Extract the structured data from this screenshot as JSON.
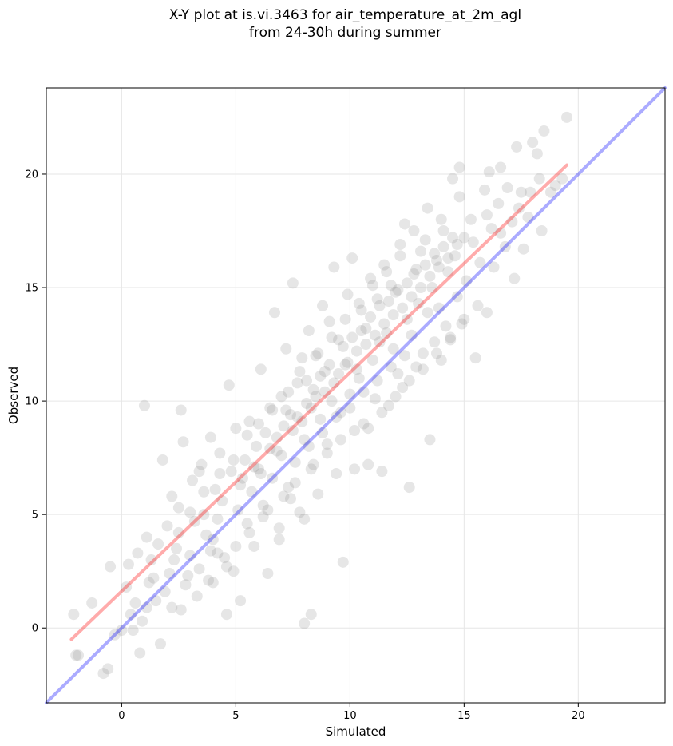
{
  "chart_data": {
    "type": "scatter",
    "title_line1": "X-Y plot at is.vi.3463 for air_temperature_at_2m_agl",
    "title_line2": "from 24-30h during summer",
    "xlabel": "Simulated",
    "ylabel": "Observed",
    "xlim": [
      -3.3,
      23.8
    ],
    "ylim": [
      -3.3,
      23.8
    ],
    "x_ticks": [
      0,
      5,
      10,
      15,
      20
    ],
    "y_ticks": [
      0,
      5,
      10,
      15,
      20
    ],
    "grid": true,
    "point_color": "#808080",
    "point_opacity": 0.2,
    "reference_line": {
      "name": "1:1 line",
      "color": "#0000ff",
      "x": [
        -3.3,
        23.8
      ],
      "y": [
        -3.3,
        23.8
      ]
    },
    "regression_line": {
      "name": "fit",
      "color": "#ff0000",
      "x": [
        -2.2,
        19.5
      ],
      "y": [
        -0.5,
        20.4
      ]
    },
    "points": [
      [
        -2.1,
        0.6
      ],
      [
        -2.0,
        -1.2
      ],
      [
        -1.9,
        -1.2
      ],
      [
        -1.3,
        1.1
      ],
      [
        -0.8,
        -2.0
      ],
      [
        -0.6,
        -1.8
      ],
      [
        -0.5,
        2.7
      ],
      [
        -0.3,
        -0.3
      ],
      [
        0.0,
        -0.1
      ],
      [
        0.2,
        1.8
      ],
      [
        0.3,
        2.8
      ],
      [
        0.4,
        0.6
      ],
      [
        0.5,
        -0.1
      ],
      [
        0.6,
        1.1
      ],
      [
        0.7,
        3.3
      ],
      [
        0.8,
        -1.1
      ],
      [
        1.0,
        9.8
      ],
      [
        1.1,
        0.9
      ],
      [
        1.2,
        2.0
      ],
      [
        1.3,
        3.0
      ],
      [
        1.5,
        1.2
      ],
      [
        1.6,
        3.7
      ],
      [
        1.7,
        -0.7
      ],
      [
        1.8,
        7.4
      ],
      [
        2.0,
        4.5
      ],
      [
        2.1,
        2.4
      ],
      [
        2.2,
        0.9
      ],
      [
        2.4,
        3.5
      ],
      [
        2.5,
        5.3
      ],
      [
        2.6,
        0.8
      ],
      [
        2.6,
        9.6
      ],
      [
        2.7,
        8.2
      ],
      [
        2.8,
        1.9
      ],
      [
        3.0,
        3.2
      ],
      [
        3.1,
        6.5
      ],
      [
        3.2,
        4.7
      ],
      [
        3.3,
        1.4
      ],
      [
        3.4,
        2.6
      ],
      [
        3.5,
        7.2
      ],
      [
        3.6,
        5.0
      ],
      [
        3.8,
        2.1
      ],
      [
        3.9,
        8.4
      ],
      [
        4.0,
        3.9
      ],
      [
        4.1,
        6.1
      ],
      [
        4.2,
        4.8
      ],
      [
        4.3,
        7.7
      ],
      [
        4.4,
        5.6
      ],
      [
        4.5,
        3.1
      ],
      [
        4.6,
        0.6
      ],
      [
        4.7,
        10.7
      ],
      [
        4.8,
        6.9
      ],
      [
        4.9,
        2.5
      ],
      [
        5.0,
        8.8
      ],
      [
        5.1,
        5.2
      ],
      [
        5.2,
        6.3
      ],
      [
        5.2,
        1.2
      ],
      [
        5.4,
        7.4
      ],
      [
        5.5,
        4.6
      ],
      [
        5.6,
        9.1
      ],
      [
        5.7,
        6.0
      ],
      [
        5.8,
        3.6
      ],
      [
        5.9,
        8.0
      ],
      [
        6.0,
        7.0
      ],
      [
        6.1,
        11.4
      ],
      [
        6.2,
        5.4
      ],
      [
        6.3,
        8.6
      ],
      [
        6.4,
        2.4
      ],
      [
        6.5,
        9.7
      ],
      [
        6.6,
        6.6
      ],
      [
        6.7,
        13.9
      ],
      [
        6.8,
        7.8
      ],
      [
        6.9,
        4.4
      ],
      [
        7.0,
        10.2
      ],
      [
        7.1,
        8.9
      ],
      [
        7.2,
        12.3
      ],
      [
        7.3,
        6.2
      ],
      [
        7.4,
        9.4
      ],
      [
        7.5,
        15.2
      ],
      [
        7.6,
        7.3
      ],
      [
        7.7,
        10.8
      ],
      [
        7.8,
        5.1
      ],
      [
        7.9,
        11.9
      ],
      [
        8.0,
        0.2
      ],
      [
        8.0,
        8.3
      ],
      [
        8.1,
        9.9
      ],
      [
        8.2,
        13.1
      ],
      [
        8.3,
        0.6
      ],
      [
        8.3,
        7.0
      ],
      [
        8.4,
        10.5
      ],
      [
        8.5,
        12.0
      ],
      [
        8.6,
        5.9
      ],
      [
        8.7,
        9.2
      ],
      [
        8.8,
        14.2
      ],
      [
        8.9,
        11.3
      ],
      [
        9.0,
        8.1
      ],
      [
        9.1,
        13.5
      ],
      [
        9.2,
        10.0
      ],
      [
        9.3,
        15.9
      ],
      [
        9.4,
        6.8
      ],
      [
        9.5,
        12.7
      ],
      [
        9.6,
        9.5
      ],
      [
        9.7,
        2.9
      ],
      [
        9.8,
        11.6
      ],
      [
        9.9,
        14.7
      ],
      [
        10.0,
        10.3
      ],
      [
        10.1,
        16.3
      ],
      [
        10.2,
        8.7
      ],
      [
        10.3,
        12.2
      ],
      [
        10.4,
        11.0
      ],
      [
        10.5,
        14.0
      ],
      [
        10.6,
        9.0
      ],
      [
        10.7,
        13.2
      ],
      [
        10.8,
        7.2
      ],
      [
        10.9,
        15.4
      ],
      [
        11.0,
        11.8
      ],
      [
        11.1,
        10.1
      ],
      [
        11.2,
        14.5
      ],
      [
        11.3,
        12.6
      ],
      [
        11.4,
        6.9
      ],
      [
        11.5,
        16.0
      ],
      [
        11.6,
        13.0
      ],
      [
        11.7,
        9.8
      ],
      [
        11.8,
        15.1
      ],
      [
        11.9,
        12.3
      ],
      [
        12.0,
        14.8
      ],
      [
        12.1,
        11.2
      ],
      [
        12.2,
        16.9
      ],
      [
        12.3,
        10.6
      ],
      [
        12.4,
        17.8
      ],
      [
        12.5,
        13.6
      ],
      [
        12.6,
        6.2
      ],
      [
        12.7,
        12.9
      ],
      [
        12.8,
        15.6
      ],
      [
        12.9,
        11.5
      ],
      [
        13.0,
        14.3
      ],
      [
        13.1,
        16.6
      ],
      [
        13.2,
        12.1
      ],
      [
        13.3,
        17.1
      ],
      [
        13.4,
        13.9
      ],
      [
        13.5,
        8.3
      ],
      [
        13.6,
        15.0
      ],
      [
        13.7,
        12.6
      ],
      [
        13.8,
        16.2
      ],
      [
        13.9,
        14.1
      ],
      [
        14.0,
        11.8
      ],
      [
        14.1,
        17.5
      ],
      [
        14.2,
        13.3
      ],
      [
        14.3,
        15.7
      ],
      [
        14.4,
        12.8
      ],
      [
        14.5,
        19.8
      ],
      [
        14.6,
        16.4
      ],
      [
        14.7,
        14.6
      ],
      [
        14.8,
        20.3
      ],
      [
        14.9,
        13.4
      ],
      [
        15.0,
        17.2
      ],
      [
        15.1,
        15.3
      ],
      [
        15.3,
        18.0
      ],
      [
        15.5,
        11.9
      ],
      [
        15.7,
        16.1
      ],
      [
        15.9,
        19.3
      ],
      [
        16.0,
        13.9
      ],
      [
        16.1,
        20.1
      ],
      [
        16.2,
        17.6
      ],
      [
        16.3,
        15.9
      ],
      [
        16.5,
        18.7
      ],
      [
        16.6,
        20.3
      ],
      [
        16.8,
        16.8
      ],
      [
        16.9,
        19.4
      ],
      [
        17.1,
        17.9
      ],
      [
        17.2,
        15.4
      ],
      [
        17.3,
        21.2
      ],
      [
        17.5,
        19.2
      ],
      [
        17.6,
        16.7
      ],
      [
        17.8,
        18.1
      ],
      [
        17.9,
        19.2
      ],
      [
        18.0,
        21.4
      ],
      [
        18.2,
        20.9
      ],
      [
        18.3,
        19.8
      ],
      [
        18.4,
        17.5
      ],
      [
        18.5,
        21.9
      ],
      [
        18.8,
        19.2
      ],
      [
        19.0,
        19.5
      ],
      [
        19.3,
        19.8
      ],
      [
        19.5,
        22.5
      ],
      [
        1.4,
        2.2
      ],
      [
        2.3,
        3.0
      ],
      [
        3.7,
        4.1
      ],
      [
        4.2,
        3.3
      ],
      [
        5.3,
        6.6
      ],
      [
        5.8,
        7.1
      ],
      [
        6.1,
        6.8
      ],
      [
        6.5,
        7.9
      ],
      [
        6.8,
        8.4
      ],
      [
        7.0,
        7.6
      ],
      [
        7.2,
        9.6
      ],
      [
        7.5,
        8.7
      ],
      [
        7.7,
        9.3
      ],
      [
        7.9,
        9.1
      ],
      [
        8.1,
        10.9
      ],
      [
        8.3,
        9.7
      ],
      [
        8.5,
        10.2
      ],
      [
        8.7,
        11.1
      ],
      [
        8.9,
        10.4
      ],
      [
        9.1,
        11.6
      ],
      [
        9.3,
        10.8
      ],
      [
        9.5,
        11.2
      ],
      [
        9.7,
        12.4
      ],
      [
        9.9,
        11.7
      ],
      [
        10.1,
        12.8
      ],
      [
        10.3,
        11.4
      ],
      [
        10.5,
        13.1
      ],
      [
        10.7,
        12.5
      ],
      [
        10.9,
        13.7
      ],
      [
        11.1,
        12.9
      ],
      [
        11.3,
        14.2
      ],
      [
        11.5,
        13.4
      ],
      [
        11.7,
        14.4
      ],
      [
        11.9,
        13.8
      ],
      [
        12.1,
        14.9
      ],
      [
        12.3,
        14.1
      ],
      [
        12.5,
        15.2
      ],
      [
        12.7,
        14.6
      ],
      [
        12.9,
        15.8
      ],
      [
        13.1,
        15.0
      ],
      [
        13.3,
        16.0
      ],
      [
        13.5,
        15.5
      ],
      [
        13.7,
        16.5
      ],
      [
        13.9,
        15.9
      ],
      [
        14.1,
        16.8
      ],
      [
        14.3,
        16.3
      ],
      [
        14.5,
        17.2
      ],
      [
        14.7,
        16.9
      ],
      [
        8.2,
        8.0
      ],
      [
        8.8,
        8.6
      ],
      [
        9.4,
        9.3
      ],
      [
        10.0,
        9.7
      ],
      [
        10.6,
        10.4
      ],
      [
        11.2,
        10.9
      ],
      [
        11.8,
        11.5
      ],
      [
        12.4,
        12.0
      ],
      [
        6.4,
        5.2
      ],
      [
        7.1,
        5.8
      ],
      [
        7.6,
        6.4
      ],
      [
        8.4,
        7.2
      ],
      [
        9.0,
        7.7
      ],
      [
        9.6,
        8.3
      ],
      [
        10.2,
        7.0
      ],
      [
        10.8,
        8.8
      ],
      [
        11.4,
        9.5
      ],
      [
        12.0,
        10.2
      ],
      [
        12.6,
        10.9
      ],
      [
        13.2,
        11.4
      ],
      [
        13.8,
        12.1
      ],
      [
        14.4,
        12.7
      ],
      [
        15.0,
        13.6
      ],
      [
        15.6,
        14.2
      ],
      [
        3.0,
        5.1
      ],
      [
        3.6,
        6.0
      ],
      [
        4.3,
        6.8
      ],
      [
        4.9,
        7.4
      ],
      [
        5.5,
        8.5
      ],
      [
        6.0,
        9.0
      ],
      [
        6.6,
        9.6
      ],
      [
        7.3,
        10.4
      ],
      [
        7.8,
        11.3
      ],
      [
        8.6,
        12.1
      ],
      [
        9.2,
        12.8
      ],
      [
        9.8,
        13.6
      ],
      [
        10.4,
        14.3
      ],
      [
        11.0,
        15.1
      ],
      [
        11.6,
        15.7
      ],
      [
        12.2,
        16.4
      ],
      [
        4.0,
        2.0
      ],
      [
        4.6,
        2.7
      ],
      [
        5.0,
        3.6
      ],
      [
        5.6,
        4.2
      ],
      [
        6.2,
        4.9
      ],
      [
        6.9,
        3.9
      ],
      [
        7.4,
        5.7
      ],
      [
        8.0,
        4.8
      ],
      [
        12.8,
        17.5
      ],
      [
        13.4,
        18.5
      ],
      [
        14.0,
        18.0
      ],
      [
        14.8,
        19.0
      ],
      [
        15.4,
        17.0
      ],
      [
        16.0,
        18.2
      ],
      [
        16.6,
        17.4
      ],
      [
        17.4,
        18.5
      ],
      [
        0.9,
        0.3
      ],
      [
        1.9,
        1.6
      ],
      [
        2.9,
        2.3
      ],
      [
        3.9,
        3.4
      ],
      [
        2.2,
        5.8
      ],
      [
        3.4,
        6.9
      ],
      [
        1.1,
        4.0
      ],
      [
        2.5,
        4.2
      ]
    ]
  }
}
